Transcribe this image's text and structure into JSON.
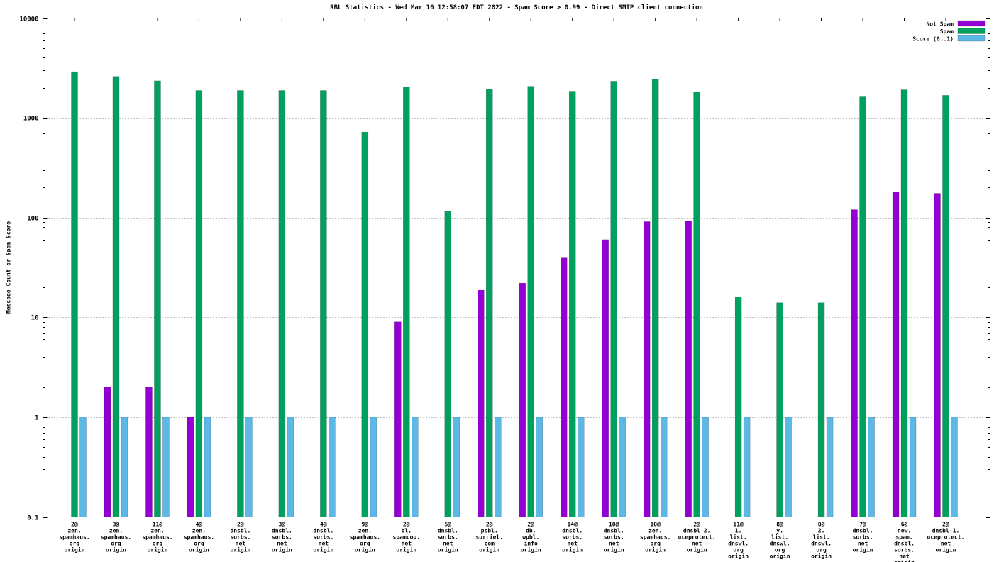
{
  "chart_data": {
    "type": "bar",
    "title": "RBL Statistics - Wed Mar 16 12:58:07 EDT 2022 - Spam Score > 0.99 - Direct SMTP client connection",
    "ylabel": "Message Count or Spam Score",
    "y_scale": "log",
    "ylim": [
      0.1,
      10000
    ],
    "grid": "horizontal-dotted",
    "legend_position": "top-right",
    "yticks": [
      {
        "value": 0.1,
        "label": "0.1"
      },
      {
        "value": 1,
        "label": "1"
      },
      {
        "value": 10,
        "label": "10"
      },
      {
        "value": 100,
        "label": "100"
      },
      {
        "value": 1000,
        "label": "1000"
      },
      {
        "value": 10000,
        "label": "10000"
      }
    ],
    "categories": [
      [
        "2@",
        "zen.",
        "spamhaus.",
        "org",
        "origin"
      ],
      [
        "3@",
        "zen.",
        "spamhaus.",
        "org",
        "origin"
      ],
      [
        "11@",
        "zen.",
        "spamhaus.",
        "org",
        "origin"
      ],
      [
        "4@",
        "zen.",
        "spamhaus.",
        "org",
        "origin"
      ],
      [
        "2@",
        "dnsbl.",
        "sorbs.",
        "net",
        "origin"
      ],
      [
        "3@",
        "dnsbl.",
        "sorbs.",
        "net",
        "origin"
      ],
      [
        "4@",
        "dnsbl.",
        "sorbs.",
        "net",
        "origin"
      ],
      [
        "9@",
        "zen.",
        "spamhaus.",
        "org",
        "origin"
      ],
      [
        "2@",
        "bl.",
        "spamcop.",
        "net",
        "origin"
      ],
      [
        "5@",
        "dnsbl.",
        "sorbs.",
        "net",
        "origin"
      ],
      [
        "2@",
        "psbl.",
        "surriel.",
        "com",
        "origin"
      ],
      [
        "2@",
        "db.",
        "wpbl.",
        "info",
        "origin"
      ],
      [
        "14@",
        "dnsbl.",
        "sorbs.",
        "net",
        "origin"
      ],
      [
        "10@",
        "dnsbl.",
        "sorbs.",
        "net",
        "origin"
      ],
      [
        "10@",
        "zen.",
        "spamhaus.",
        "org",
        "origin"
      ],
      [
        "2@",
        "dnsbl-2.",
        "uceprotect.",
        "net",
        "origin"
      ],
      [
        "11@",
        "1.",
        "list.",
        "dnswl.",
        "org",
        "origin"
      ],
      [
        "8@",
        "y.",
        "list.",
        "dnswl.",
        "org",
        "origin"
      ],
      [
        "8@",
        "2.",
        "list.",
        "dnswl.",
        "org",
        "origin"
      ],
      [
        "7@",
        "dnsbl.",
        "sorbs.",
        "net",
        "origin"
      ],
      [
        "6@",
        "new.",
        "spam.",
        "dnsbl.",
        "sorbs.",
        "net",
        "origin"
      ],
      [
        "2@",
        "dnsbl-1.",
        "uceprotect.",
        "net",
        "origin"
      ]
    ],
    "series": [
      {
        "name": "Not Spam",
        "color": "#9400d3",
        "values": [
          0,
          2,
          2,
          1,
          0,
          0,
          0,
          0,
          9,
          0,
          19,
          22,
          40,
          60,
          91,
          93,
          0,
          0,
          0,
          120,
          180,
          175
        ]
      },
      {
        "name": "Spam",
        "color": "#00a15e",
        "values": [
          2900,
          2600,
          2350,
          1880,
          1880,
          1880,
          1880,
          720,
          2040,
          115,
          1950,
          2070,
          1850,
          2330,
          2440,
          1820,
          16,
          14,
          14,
          1650,
          1910,
          1680
        ]
      },
      {
        "name": "Score (0..1)",
        "color": "#5cb8e6",
        "values": [
          1,
          1,
          1,
          1,
          1,
          1,
          1,
          1,
          1,
          1,
          1,
          1,
          1,
          1,
          1,
          1,
          1,
          1,
          1,
          1,
          1,
          1
        ]
      }
    ]
  }
}
